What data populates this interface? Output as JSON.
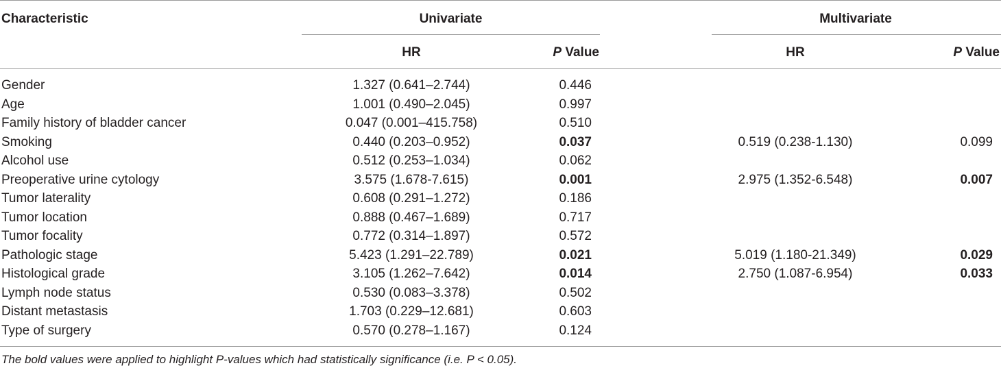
{
  "headers": {
    "characteristic": "Characteristic",
    "univariate": "Univariate",
    "multivariate": "Multivariate",
    "hr": "HR",
    "p_italic": "P",
    "p_rest": " Value"
  },
  "rows": [
    {
      "name": "Gender",
      "uni_hr": "1.327 (0.641–2.744)",
      "uni_p": "0.446",
      "uni_sig": false,
      "multi_hr": "",
      "multi_p": "",
      "multi_sig": false
    },
    {
      "name": "Age",
      "uni_hr": "1.001 (0.490–2.045)",
      "uni_p": "0.997",
      "uni_sig": false,
      "multi_hr": "",
      "multi_p": "",
      "multi_sig": false
    },
    {
      "name": "Family history of bladder cancer",
      "uni_hr": "0.047 (0.001–415.758)",
      "uni_p": "0.510",
      "uni_sig": false,
      "multi_hr": "",
      "multi_p": "",
      "multi_sig": false
    },
    {
      "name": "Smoking",
      "uni_hr": "0.440 (0.203–0.952)",
      "uni_p": "0.037",
      "uni_sig": true,
      "multi_hr": "0.519 (0.238-1.130)",
      "multi_p": "0.099",
      "multi_sig": false
    },
    {
      "name": "Alcohol use",
      "uni_hr": "0.512 (0.253–1.034)",
      "uni_p": "0.062",
      "uni_sig": false,
      "multi_hr": "",
      "multi_p": "",
      "multi_sig": false
    },
    {
      "name": "Preoperative urine cytology",
      "uni_hr": "3.575 (1.678-7.615)",
      "uni_p": "0.001",
      "uni_sig": true,
      "multi_hr": "2.975 (1.352-6.548)",
      "multi_p": "0.007",
      "multi_sig": true
    },
    {
      "name": "Tumor laterality",
      "uni_hr": "0.608 (0.291–1.272)",
      "uni_p": "0.186",
      "uni_sig": false,
      "multi_hr": "",
      "multi_p": "",
      "multi_sig": false
    },
    {
      "name": "Tumor location",
      "uni_hr": "0.888 (0.467–1.689)",
      "uni_p": "0.717",
      "uni_sig": false,
      "multi_hr": "",
      "multi_p": "",
      "multi_sig": false
    },
    {
      "name": "Tumor focality",
      "uni_hr": "0.772 (0.314–1.897)",
      "uni_p": "0.572",
      "uni_sig": false,
      "multi_hr": "",
      "multi_p": "",
      "multi_sig": false
    },
    {
      "name": "Pathologic stage",
      "uni_hr": "5.423 (1.291–22.789)",
      "uni_p": "0.021",
      "uni_sig": true,
      "multi_hr": "5.019 (1.180-21.349)",
      "multi_p": "0.029",
      "multi_sig": true
    },
    {
      "name": "Histological grade",
      "uni_hr": "3.105 (1.262–7.642)",
      "uni_p": "0.014",
      "uni_sig": true,
      "multi_hr": "2.750 (1.087-6.954)",
      "multi_p": "0.033",
      "multi_sig": true
    },
    {
      "name": "Lymph node status",
      "uni_hr": "0.530 (0.083–3.378)",
      "uni_p": "0.502",
      "uni_sig": false,
      "multi_hr": "",
      "multi_p": "",
      "multi_sig": false
    },
    {
      "name": "Distant metastasis",
      "uni_hr": "1.703 (0.229–12.681)",
      "uni_p": "0.603",
      "uni_sig": false,
      "multi_hr": "",
      "multi_p": "",
      "multi_sig": false
    },
    {
      "name": "Type of surgery",
      "uni_hr": "0.570 (0.278–1.167)",
      "uni_p": "0.124",
      "uni_sig": false,
      "multi_hr": "",
      "multi_p": "",
      "multi_sig": false
    }
  ],
  "footnote": "The bold values were applied to highlight P-values which had statistically significance (i.e. P < 0.05)."
}
